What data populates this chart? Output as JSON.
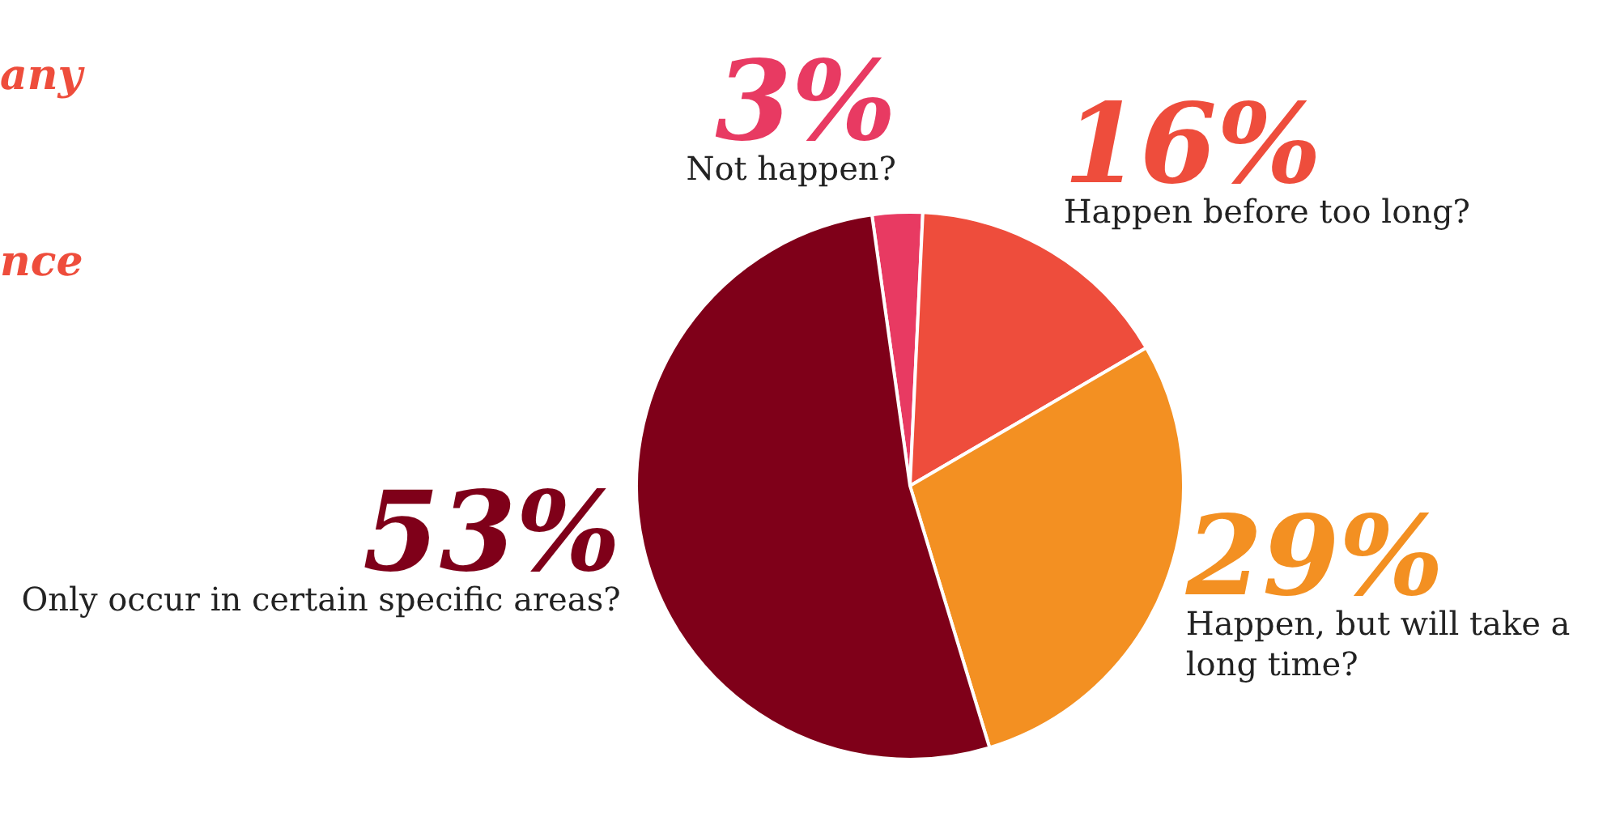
{
  "chart_data": {
    "type": "pie",
    "categories": [
      "Not happen?",
      "Happen before too long?",
      "Happen, but will take a long time?",
      "Only occur in certain specific areas?"
    ],
    "values": [
      3,
      16,
      29,
      53
    ],
    "value_labels": [
      "3%",
      "16%",
      "29%",
      "53%"
    ],
    "colors": [
      "#e83a62",
      "#ee4d3c",
      "#f39022",
      "#7f0019"
    ],
    "annotations": [
      "any",
      "nce"
    ],
    "legend": false
  }
}
